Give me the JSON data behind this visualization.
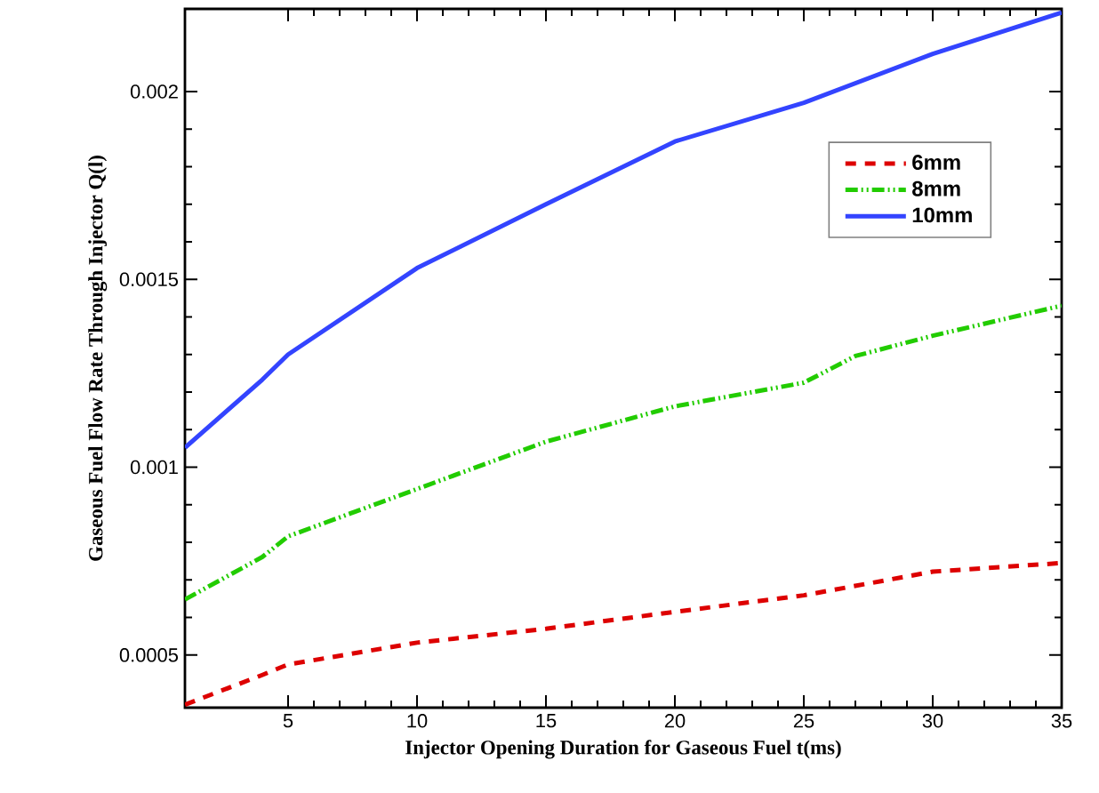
{
  "chart_data": {
    "type": "line",
    "xlabel": "Injector Opening Duration for Gaseous Fuel t(ms)",
    "ylabel": "Gaseous Fuel Flow Rate Through Injector Q(l)",
    "xlim": [
      1,
      35
    ],
    "ylim": [
      0.00036,
      0.00222
    ],
    "xticks": [
      5,
      10,
      15,
      20,
      25,
      30,
      35
    ],
    "yticks": [
      0.0005,
      0.001,
      0.0015,
      0.002
    ],
    "legend": "top right",
    "grid": false,
    "marker": "none",
    "series": [
      {
        "name": "6mm",
        "color": "#dd0000",
        "line_style": "dashed",
        "x": [
          1,
          4,
          5,
          10,
          15,
          20,
          25,
          30,
          35
        ],
        "values": [
          0.000368,
          0.000447,
          0.000475,
          0.000533,
          0.00057,
          0.000615,
          0.000659,
          0.000722,
          0.000745
        ]
      },
      {
        "name": "8mm",
        "color": "#22cc00",
        "line_style": "dashdotdotted",
        "x": [
          1,
          4,
          5,
          10,
          15,
          20,
          25,
          27,
          30,
          35
        ],
        "values": [
          0.000648,
          0.000761,
          0.000816,
          0.000942,
          0.001068,
          0.001162,
          0.001225,
          0.001296,
          0.00135,
          0.00143
        ]
      },
      {
        "name": "10mm",
        "color": "#3344ff",
        "line_style": "solid",
        "x": [
          1,
          4,
          5,
          10,
          15,
          20,
          25,
          30,
          35
        ],
        "values": [
          0.001052,
          0.001233,
          0.0013,
          0.00153,
          0.0017,
          0.001867,
          0.00197,
          0.0021,
          0.00221
        ]
      }
    ]
  }
}
